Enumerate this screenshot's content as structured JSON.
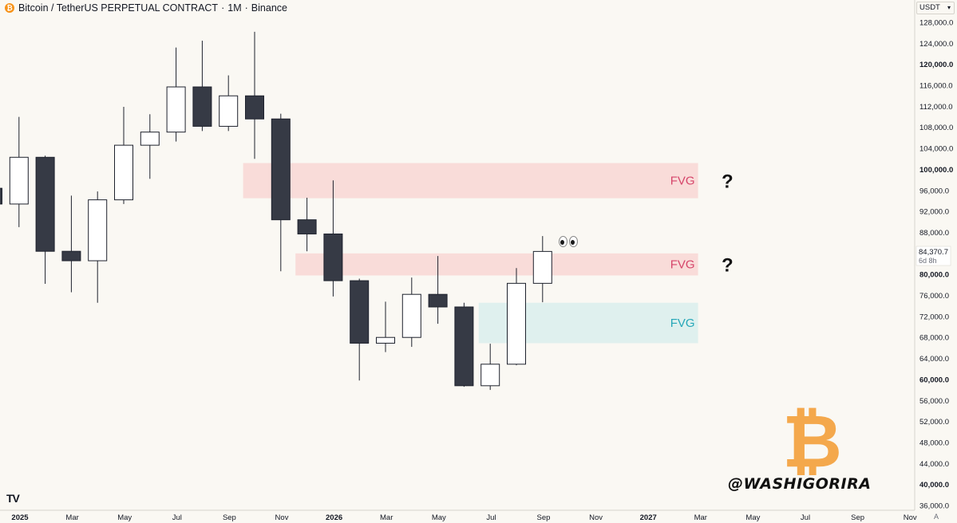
{
  "header": {
    "title": "Bitcoin / TetherUS PERPETUAL CONTRACT",
    "interval": "1M",
    "exchange": "Binance",
    "coin_icon": "bitcoin-icon",
    "sep1": "·",
    "sep2": "·"
  },
  "currency_selector": {
    "label": "USDT",
    "caret": "chevron-down-icon"
  },
  "price_tag": {
    "price": "84,370.7",
    "countdown": "6d 8h"
  },
  "auto_label": "A",
  "watermark": "@WASHIGORIRA",
  "logo_glyph": "₿",
  "tv_logo": "TV",
  "colors": {
    "background": "#faf8f3",
    "up_body": "#ffffff",
    "down_body": "#363a45",
    "wick": "#1e222d",
    "fvg_bear": "#f9dcd9",
    "fvg_bull": "#dff0ee",
    "fvg_bear_text": "#d6456a",
    "fvg_bull_text": "#26a7b8",
    "axis_text": "#131722",
    "bitcoin_orange": "#f4a84c"
  },
  "chart_data": {
    "type": "candlestick",
    "y_axis": {
      "min": 36000,
      "max": 128000,
      "ticks": [
        128000,
        124000,
        120000,
        116000,
        112000,
        108000,
        104000,
        100000,
        96000,
        92000,
        88000,
        84000,
        80000,
        76000,
        72000,
        68000,
        64000,
        60000,
        56000,
        52000,
        48000,
        44000,
        40000,
        36000
      ],
      "tick_labels": [
        "128,000.0",
        "124,000.0",
        "120,000.0",
        "116,000.0",
        "112,000.0",
        "108,000.0",
        "104,000.0",
        "100,000.0",
        "96,000.0",
        "92,000.0",
        "88,000.0",
        "",
        "80,000.0",
        "76,000.0",
        "72,000.0",
        "68,000.0",
        "64,000.0",
        "60,000.0",
        "56,000.0",
        "52,000.0",
        "48,000.0",
        "44,000.0",
        "40,000.0",
        "36,000.0"
      ],
      "bold_ticks": [
        120000,
        100000,
        80000,
        60000,
        40000
      ]
    },
    "x_axis": {
      "labels": [
        "2025",
        "Mar",
        "May",
        "Jul",
        "Sep",
        "Nov",
        "2026",
        "Mar",
        "May",
        "Jul",
        "Sep",
        "Nov",
        "2027",
        "Mar",
        "May",
        "Jul",
        "Sep",
        "Nov"
      ],
      "bold_labels": [
        "2025",
        "2026",
        "2027"
      ]
    },
    "candles": [
      {
        "month": "2024-12",
        "open": 96400,
        "high": 108000,
        "low": 92000,
        "close": 93400
      },
      {
        "month": "2025-01",
        "open": 93400,
        "high": 110000,
        "low": 89000,
        "close": 102300
      },
      {
        "month": "2025-02",
        "open": 102300,
        "high": 102600,
        "low": 78200,
        "close": 84400
      },
      {
        "month": "2025-03",
        "open": 84400,
        "high": 95000,
        "low": 76600,
        "close": 82600
      },
      {
        "month": "2025-04",
        "open": 82600,
        "high": 95800,
        "low": 74600,
        "close": 94200
      },
      {
        "month": "2025-05",
        "open": 94200,
        "high": 111900,
        "low": 93400,
        "close": 104600
      },
      {
        "month": "2025-06",
        "open": 104600,
        "high": 110500,
        "low": 98200,
        "close": 107100
      },
      {
        "month": "2025-07",
        "open": 107100,
        "high": 123200,
        "low": 105300,
        "close": 115700
      },
      {
        "month": "2025-08",
        "open": 115700,
        "high": 124500,
        "low": 107300,
        "close": 108200
      },
      {
        "month": "2025-09",
        "open": 108200,
        "high": 117900,
        "low": 107300,
        "close": 114000
      },
      {
        "month": "2025-10",
        "open": 114000,
        "high": 126200,
        "low": 102000,
        "close": 109600
      },
      {
        "month": "2025-11",
        "open": 109600,
        "high": 110600,
        "low": 80600,
        "close": 90400
      },
      {
        "month": "2025-12",
        "open": 90400,
        "high": 94600,
        "low": 84400,
        "close": 87700
      },
      {
        "month": "2026-01",
        "open": 87700,
        "high": 97900,
        "low": 75800,
        "close": 78800
      },
      {
        "month": "2026-02",
        "open": 78800,
        "high": 79200,
        "low": 59800,
        "close": 66900
      },
      {
        "month": "2026-03",
        "open": 66900,
        "high": 74800,
        "low": 65200,
        "close": 68000
      },
      {
        "month": "2026-04",
        "open": 68000,
        "high": 79400,
        "low": 66200,
        "close": 76200
      },
      {
        "month": "2026-05",
        "open": 76200,
        "high": 83500,
        "low": 70600,
        "close": 73800
      },
      {
        "month": "2026-06",
        "open": 73800,
        "high": 74600,
        "low": 58600,
        "close": 58800
      },
      {
        "month": "2026-07",
        "open": 58800,
        "high": 66800,
        "low": 58000,
        "close": 62900
      },
      {
        "month": "2026-08",
        "open": 62900,
        "high": 81200,
        "low": 62700,
        "close": 78300
      },
      {
        "month": "2026-09",
        "open": 78300,
        "high": 87300,
        "low": 74700,
        "close": 84370.7
      }
    ],
    "zones": [
      {
        "label": "FVG",
        "kind": "bearish",
        "top": 101200,
        "bottom": 94500,
        "start": "2025-10",
        "end": "2027-03"
      },
      {
        "label": "FVG",
        "kind": "bearish",
        "top": 84000,
        "bottom": 79800,
        "start": "2025-12",
        "end": "2027-03"
      },
      {
        "label": "FVG",
        "kind": "bullish",
        "top": 74600,
        "bottom": 66900,
        "start": "2026-07",
        "end": "2027-03"
      }
    ],
    "question_marks": [
      "?",
      "?"
    ],
    "current_price": 84370.7
  }
}
